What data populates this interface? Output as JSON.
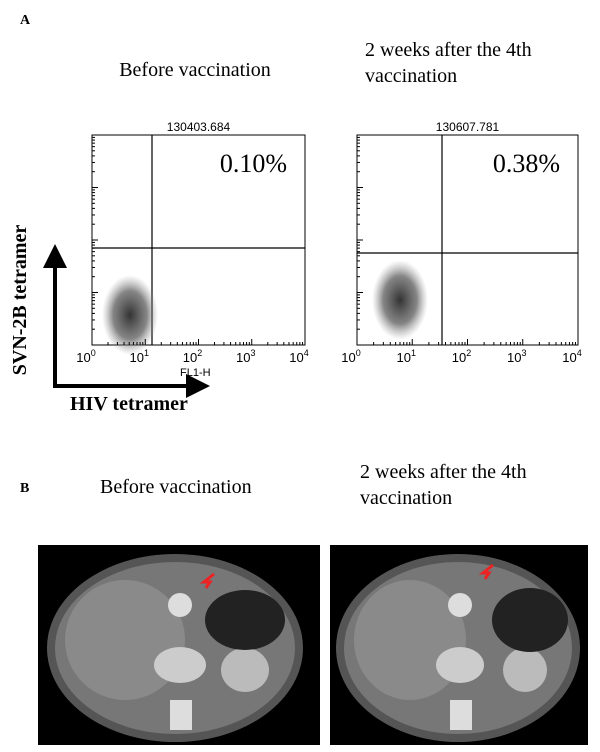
{
  "panel_a": {
    "label": "A",
    "plots": [
      {
        "heading": "Before vaccination",
        "title": "130403.684",
        "percent": "0.10%",
        "x_axis_label": "FL1-H"
      },
      {
        "heading": "2 weeks after the 4th vaccination",
        "title": "130607.781",
        "percent": "0.38%"
      }
    ],
    "xticks": [
      {
        "base": "10",
        "exp": "0"
      },
      {
        "base": "10",
        "exp": "1"
      },
      {
        "base": "10",
        "exp": "2"
      },
      {
        "base": "10",
        "exp": "3"
      },
      {
        "base": "10",
        "exp": "4"
      }
    ],
    "y_arrow_label": "SVN-2B tetramer",
    "x_arrow_label": "HIV tetramer"
  },
  "panel_b": {
    "label": "B",
    "headings": [
      "Before vaccination",
      "2 weeks after the 4th vaccination"
    ]
  }
}
